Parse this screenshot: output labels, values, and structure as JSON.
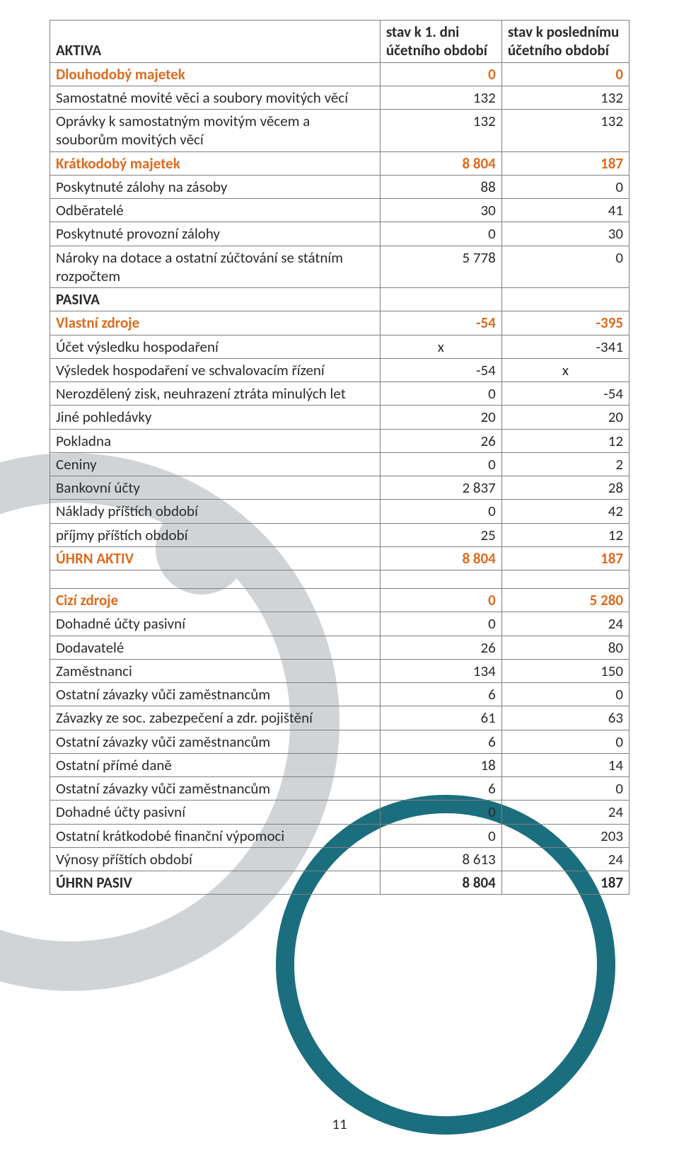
{
  "header": {
    "col0": "AKTIVA",
    "col1": "stav k 1. dni účetního období",
    "col2": "stav k poslednímu účetního období"
  },
  "rows": [
    {
      "label": "Dlouhodobý majetek",
      "v1": "0",
      "v2": "0",
      "accent": true
    },
    {
      "label": "Samostatné movité věci a soubory movitých věcí",
      "v1": "132",
      "v2": "132"
    },
    {
      "label": "Oprávky k samostatným movitým věcem a souborům movitých věcí",
      "v1": "132",
      "v2": "132"
    },
    {
      "label": "Krátkodobý majetek",
      "v1": "8 804",
      "v2": "187",
      "accent": true
    },
    {
      "label": "Poskytnuté zálohy na zásoby",
      "v1": "88",
      "v2": "0"
    },
    {
      "label": "Odběratelé",
      "v1": "30",
      "v2": "41"
    },
    {
      "label": "Poskytnuté provozní zálohy",
      "v1": "0",
      "v2": "30"
    },
    {
      "label": "Nároky na dotace a ostatní zúčtování se státním rozpočtem",
      "v1": "5 778",
      "v2": "0"
    },
    {
      "label": "PASIVA",
      "v1": "",
      "v2": "",
      "bold": true
    },
    {
      "label": "Vlastní zdroje",
      "v1": "-54",
      "v2": "-395",
      "accent": true
    },
    {
      "label": "Účet výsledku hospodaření",
      "v1": "x",
      "v1_x": true,
      "v2": "-341"
    },
    {
      "label": "Výsledek hospodaření ve schvalovacím řízení",
      "v1": "-54",
      "v2": "x",
      "v2_x": true
    },
    {
      "label": "Nerozdělený zisk, neuhrazení ztráta minulých let",
      "v1": "0",
      "v2": "-54"
    },
    {
      "label": "Jiné pohledávky",
      "v1": "20",
      "v2": "20"
    },
    {
      "label": "Pokladna",
      "v1": "26",
      "v2": "12"
    },
    {
      "label": "Ceniny",
      "v1": "0",
      "v2": "2"
    },
    {
      "label": "Bankovní účty",
      "v1": "2 837",
      "v2": "28"
    },
    {
      "label": "Náklady příštích období",
      "v1": "0",
      "v2": "42"
    },
    {
      "label": "příjmy příštích období",
      "v1": "25",
      "v2": "12"
    },
    {
      "label": "ÚHRN AKTIV",
      "v1": "8 804",
      "v2": "187",
      "accent": true
    },
    {
      "label": "",
      "v1": "",
      "v2": "",
      "empty": true
    },
    {
      "label": "Cizí zdroje",
      "v1": "0",
      "v2": "5 280",
      "accent": true
    },
    {
      "label": "Dohadné účty pasivní",
      "v1": "0",
      "v2": "24"
    },
    {
      "label": "Dodavatelé",
      "v1": "26",
      "v2": "80"
    },
    {
      "label": "Zaměstnanci",
      "v1": "134",
      "v2": "150"
    },
    {
      "label": "Ostatní závazky vůči zaměstnancům",
      "v1": "6",
      "v2": "0"
    },
    {
      "label": "Závazky ze soc. zabezpečení a zdr. pojištění",
      "v1": "61",
      "v2": "63"
    },
    {
      "label": "Ostatní závazky vůči zaměstnancům",
      "v1": "6",
      "v2": "0"
    },
    {
      "label": "Ostatní přímé daně",
      "v1": "18",
      "v2": "14"
    },
    {
      "label": "Ostatní závazky vůči zaměstnancům",
      "v1": "6",
      "v2": "0"
    },
    {
      "label": "Dohadné účty pasivní",
      "v1": "0",
      "v2": "24"
    },
    {
      "label": "Ostatní krátkodobé finanční výpomoci",
      "v1": "0",
      "v2": "203"
    },
    {
      "label": "Výnosy příštích období",
      "v1": "8 613",
      "v2": "24"
    },
    {
      "label": "ÚHRN PASIV",
      "v1": "8 804",
      "v2": "187",
      "bold": true
    }
  ],
  "page_number": "11",
  "colors": {
    "accent": "#dd6b1f",
    "text": "#2b2b2b",
    "border": "#7f7f7f",
    "watermark_gray": "#d0d4d6",
    "watermark_teal": "#1b6e7e"
  }
}
